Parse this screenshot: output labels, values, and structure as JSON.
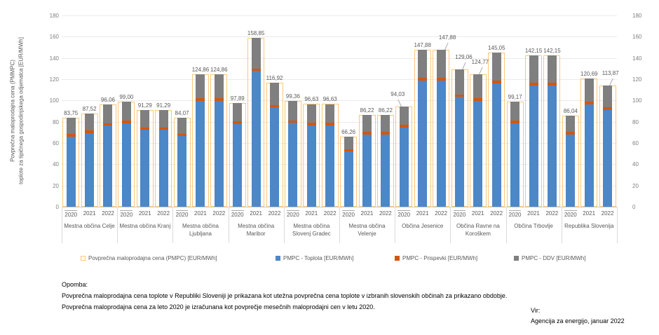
{
  "colors": {
    "pmpc_outline": "#FBC777",
    "toplota": "#4C87C8",
    "prispevki": "#D2570E",
    "ddv": "#7F7F7F",
    "gridline": "#EBEBEB",
    "tick_text": "#7F7F7F",
    "label_text": "#595959"
  },
  "y_axis_title": {
    "line1": "Povprečna maloprodajna cena (PMMPC)",
    "line2": "toplote za tipičnega gospodinjskega odjemalca  [EUR/MWh]"
  },
  "legend": {
    "items": [
      {
        "label": "Povprečna maloprodajna cena (PMPC) [EUR/MWh]",
        "swatch": "outline",
        "color": "#FBC777"
      },
      {
        "label": "PMPC - Toplota [EUR/MWh]",
        "swatch": "fill",
        "color": "#4C87C8"
      },
      {
        "label": "PMPC - Prispevki [EUR/MWh]",
        "swatch": "fill",
        "color": "#D2570E"
      },
      {
        "label": "PMPC - DDV [EUR/MWh]",
        "swatch": "fill",
        "color": "#7F7F7F"
      }
    ]
  },
  "notes": {
    "heading": "Opomba:",
    "line1": "Povprečna maloprodajna cena toplote v Republiki Sloveniji je prikazana kot utežna povprečna cena toplote v izbranih slovenskih občinah za prikazano obdobje.",
    "line2": "Povprečna maloprodajna cena za leto 2020 je izračunana kot povprečje mesečnih maloprodajni cen v letu 2020."
  },
  "source": {
    "label": "Vir:",
    "text": "Agencija za energijo, januar 2022"
  },
  "chart_data": {
    "type": "stacked-bar",
    "title": "",
    "ylabel": "Povprečna maloprodajna cena (PMMPC) toplote za tipičnega gospodinjskega odjemalca [EUR/MWh]",
    "ylim": [
      0,
      180
    ],
    "y_tick_step": 20,
    "grid": true,
    "secondary_y_axis": true,
    "legend_position": "bottom",
    "series_names": [
      "Povprečna maloprodajna cena (PMPC) [EUR/MWh]",
      "PMPC - Toplota [EUR/MWh]",
      "PMPC - Prispevki [EUR/MWh]",
      "PMPC - DDV [EUR/MWh]"
    ],
    "note": "segment values for Toplota/Prispevki/DDV are estimated from bar proportions; totals are the printed data labels",
    "groups": [
      {
        "name": "Mestna občina Celje",
        "bars": [
          {
            "year": "2020",
            "label": "83,75",
            "total": 83.75,
            "toplota": 66.15,
            "prispevki": 2.5,
            "ddv": 15.1
          },
          {
            "year": "2021",
            "label": "87,52",
            "total": 87.52,
            "toplota": 69.24,
            "prispevki": 2.5,
            "ddv": 15.78
          },
          {
            "year": "2022",
            "label": "96,06",
            "total": 96.06,
            "toplota": 76.24,
            "prispevki": 2.5,
            "ddv": 17.32
          }
        ]
      },
      {
        "name": "Mestna občina Kranj",
        "bars": [
          {
            "year": "2020",
            "label": "99,00",
            "total": 99.0,
            "toplota": 78.65,
            "prispevki": 2.5,
            "ddv": 17.85
          },
          {
            "year": "2021",
            "label": "91,29",
            "total": 91.29,
            "toplota": 72.33,
            "prispevki": 2.5,
            "ddv": 16.46
          },
          {
            "year": "2022",
            "label": "91,29",
            "total": 91.29,
            "toplota": 72.33,
            "prispevki": 2.5,
            "ddv": 16.46
          }
        ]
      },
      {
        "name": "Mestna občina Ljubljana",
        "bars": [
          {
            "year": "2020",
            "label": "84,07",
            "total": 84.07,
            "toplota": 66.41,
            "prispevki": 2.5,
            "ddv": 15.16
          },
          {
            "year": "2021",
            "label": "124,86",
            "total": 124.86,
            "toplota": 99.84,
            "prispevki": 2.5,
            "ddv": 22.52
          },
          {
            "year": "2022",
            "label": "124,86",
            "total": 124.86,
            "toplota": 99.84,
            "prispevki": 2.5,
            "ddv": 22.52
          }
        ]
      },
      {
        "name": "Mestna občina Maribor",
        "bars": [
          {
            "year": "2020",
            "label": "97,89",
            "total": 97.89,
            "toplota": 77.74,
            "prispevki": 2.5,
            "ddv": 17.65
          },
          {
            "year": "2021",
            "label": "158,85",
            "total": 158.85,
            "toplota": 127.7,
            "prispevki": 2.5,
            "ddv": 28.65
          },
          {
            "year": "2022",
            "label": "116,92",
            "total": 116.92,
            "toplota": 93.34,
            "prispevki": 2.5,
            "ddv": 21.08
          }
        ]
      },
      {
        "name": "Mestna občina Slovenj Gradec",
        "bars": [
          {
            "year": "2020",
            "label": "99,36",
            "total": 99.36,
            "toplota": 78.94,
            "prispevki": 2.5,
            "ddv": 17.92
          },
          {
            "year": "2021",
            "label": "96,63",
            "total": 96.63,
            "toplota": 76.7,
            "prispevki": 2.5,
            "ddv": 17.43
          },
          {
            "year": "2022",
            "label": "96,63",
            "total": 96.63,
            "toplota": 76.7,
            "prispevki": 2.5,
            "ddv": 17.43
          }
        ]
      },
      {
        "name": "Mestna občina Velenje",
        "bars": [
          {
            "year": "2020",
            "label": "66,26",
            "total": 66.26,
            "toplota": 51.81,
            "prispevki": 2.5,
            "ddv": 11.95
          },
          {
            "year": "2021",
            "label": "86,22",
            "total": 86.22,
            "toplota": 68.17,
            "prispevki": 2.5,
            "ddv": 15.55
          },
          {
            "year": "2022",
            "label": "86,22",
            "total": 86.22,
            "toplota": 68.17,
            "prispevki": 2.5,
            "ddv": 15.55
          }
        ]
      },
      {
        "name": "Občina Jesenice",
        "bars": [
          {
            "year": "2020",
            "label": "94,03",
            "total": 94.03,
            "toplota": 74.57,
            "prispevki": 2.5,
            "ddv": 16.96,
            "raised": true,
            "dx": -9
          },
          {
            "year": "2021",
            "label": "147,88",
            "total": 147.88,
            "toplota": 118.71,
            "prispevki": 2.5,
            "ddv": 26.67
          },
          {
            "year": "2022",
            "label": "147,88",
            "total": 147.88,
            "toplota": 118.71,
            "prispevki": 2.5,
            "ddv": 26.67,
            "raised": true,
            "dx": 9
          }
        ]
      },
      {
        "name": "Občina Ravne na Koroškem",
        "bars": [
          {
            "year": "2020",
            "label": "129,06",
            "total": 129.06,
            "toplota": 103.29,
            "prispevki": 2.5,
            "ddv": 23.27,
            "raised": true,
            "dx": 6
          },
          {
            "year": "2021",
            "label": "124,77",
            "total": 124.77,
            "toplota": 99.77,
            "prispevki": 2.5,
            "ddv": 22.5,
            "raised": true,
            "dx": 3
          },
          {
            "year": "2022",
            "label": "145,05",
            "total": 145.05,
            "toplota": 116.39,
            "prispevki": 2.5,
            "ddv": 26.16
          }
        ]
      },
      {
        "name": "Občina Trbovlje",
        "bars": [
          {
            "year": "2020",
            "label": "99,17",
            "total": 99.17,
            "toplota": 78.79,
            "prispevki": 2.5,
            "ddv": 17.88
          },
          {
            "year": "2021",
            "label": "142,15",
            "total": 142.15,
            "toplota": 114.02,
            "prispevki": 2.5,
            "ddv": 25.63
          },
          {
            "year": "2022",
            "label": "142,15",
            "total": 142.15,
            "toplota": 114.02,
            "prispevki": 2.5,
            "ddv": 25.63
          }
        ]
      },
      {
        "name": "Republika Slovenija",
        "bars": [
          {
            "year": "2020",
            "label": "86,04",
            "total": 86.04,
            "toplota": 68.02,
            "prispevki": 2.5,
            "ddv": 15.52
          },
          {
            "year": "2021",
            "label": "120,69",
            "total": 120.69,
            "toplota": 96.42,
            "prispevki": 2.5,
            "ddv": 21.77
          },
          {
            "year": "2022",
            "label": "113,87",
            "total": 113.87,
            "toplota": 90.83,
            "prispevki": 2.5,
            "ddv": 20.54,
            "raised": true,
            "dx": 4
          }
        ]
      }
    ]
  }
}
